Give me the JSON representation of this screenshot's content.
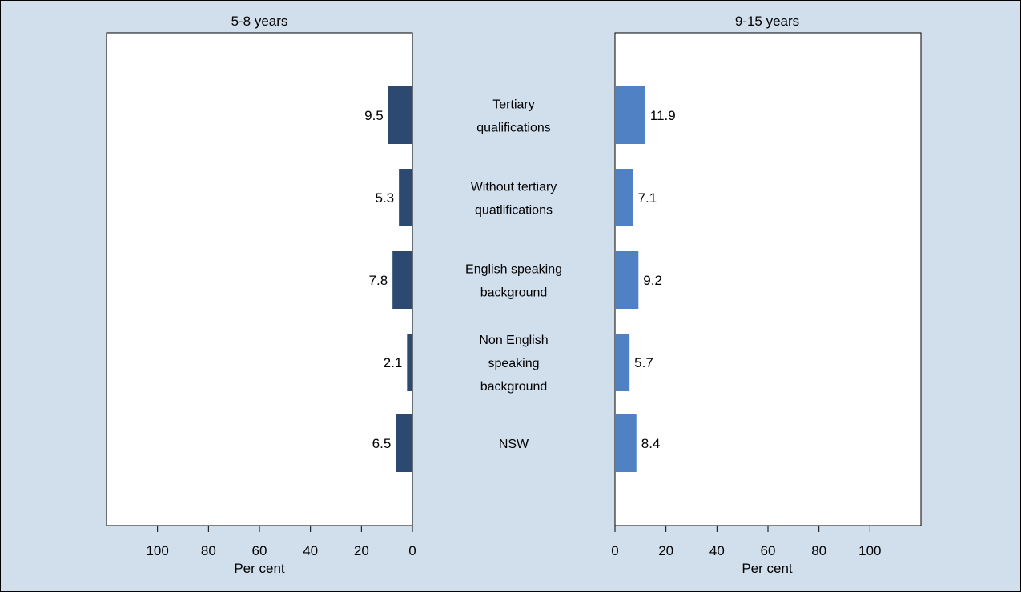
{
  "colors": {
    "background": "#d1dfed",
    "border": "#000000",
    "plot_bg": "#ffffff",
    "left_bar": "#2c4a71",
    "right_bar": "#4f81c4"
  },
  "chart_data": {
    "type": "bar",
    "orientation": "horizontal-butterfly",
    "categories": [
      "Tertiary qualifications",
      "Without tertiary quatlifications",
      "English speaking background",
      "Non English speaking background",
      "NSW"
    ],
    "category_label_lines": [
      [
        "Tertiary",
        "qualifications"
      ],
      [
        "Without tertiary",
        "quatlifications"
      ],
      [
        "English speaking",
        "background"
      ],
      [
        "Non English",
        "speaking",
        "background"
      ],
      [
        "NSW"
      ]
    ],
    "series": [
      {
        "name": "5-8 years",
        "direction": "left",
        "values": [
          9.5,
          5.3,
          7.8,
          2.1,
          6.5
        ],
        "value_labels": [
          "9.5",
          "5.3",
          "7.8",
          "2.1",
          "6.5"
        ]
      },
      {
        "name": "9-15 years",
        "direction": "right",
        "values": [
          11.9,
          7.1,
          9.2,
          5.7,
          8.4
        ],
        "value_labels": [
          "11.9",
          "7.1",
          "9.2",
          "5.7",
          "8.4"
        ]
      }
    ],
    "xlabel": "Per cent",
    "xlim": [
      0,
      120
    ],
    "ticks": [
      0,
      20,
      40,
      60,
      80,
      100
    ],
    "tick_labels": [
      "0",
      "20",
      "40",
      "60",
      "80",
      "100"
    ],
    "grid": false,
    "legend": "none"
  }
}
